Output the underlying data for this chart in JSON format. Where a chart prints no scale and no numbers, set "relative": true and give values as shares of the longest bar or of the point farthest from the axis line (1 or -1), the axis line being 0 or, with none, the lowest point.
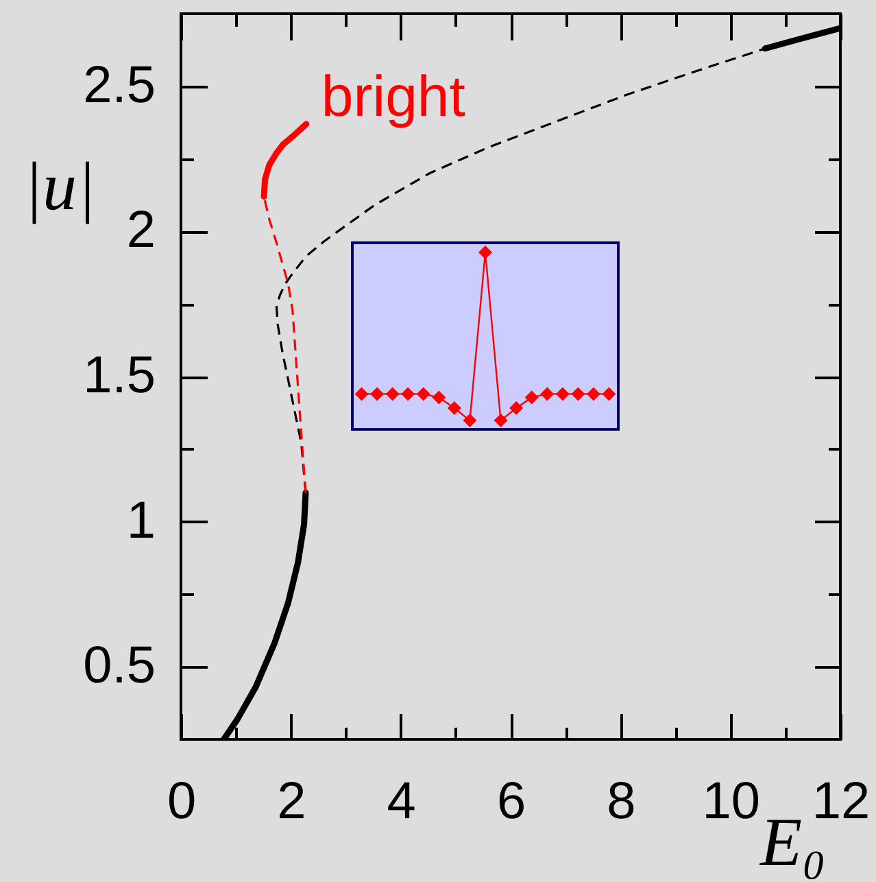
{
  "chart_data": [
    {
      "type": "line",
      "xlabel": "E₀",
      "ylabel": "|u|",
      "xlim": [
        0,
        12
      ],
      "ylim": [
        0.25,
        2.75
      ],
      "xticks": [
        0,
        {
          "value": 1,
          "label": null
        },
        2,
        {
          "value": 3,
          "label": null
        },
        4,
        {
          "value": 5,
          "label": null
        },
        6,
        {
          "value": 7,
          "label": null
        },
        8,
        {
          "value": 9,
          "label": null
        },
        10,
        {
          "value": 11,
          "label": null
        },
        12
      ],
      "yticks": [
        0.5,
        {
          "value": 0.75,
          "label": null
        },
        1,
        {
          "value": 1.25,
          "label": null
        },
        1.5,
        {
          "value": 1.75,
          "label": null
        },
        2,
        {
          "value": 2.25,
          "label": null
        },
        2.5
      ],
      "series": [
        {
          "color": "#000000",
          "line_style": "solid",
          "x": [
            0.78,
            1.03,
            1.36,
            1.7,
            1.95,
            2.13,
            2.24,
            2.27
          ],
          "values": [
            0.25,
            0.32,
            0.43,
            0.58,
            0.72,
            0.86,
            0.99,
            1.1
          ]
        },
        {
          "color": "#000000",
          "line_style": "dashed",
          "x": [
            2.27,
            2.19,
            2.07,
            1.95,
            1.85,
            1.76,
            1.74,
            1.8,
            1.9,
            2.05,
            2.28,
            2.6,
            2.78,
            3.52,
            4.52,
            5.6,
            6.85,
            8.1,
            9.34,
            10.63
          ],
          "values": [
            1.1,
            1.27,
            1.38,
            1.49,
            1.58,
            1.68,
            1.74,
            1.78,
            1.82,
            1.86,
            1.915,
            1.965,
            1.99,
            2.09,
            2.2,
            2.29,
            2.38,
            2.47,
            2.55,
            2.63
          ]
        },
        {
          "color": "#000000",
          "line_style": "solid",
          "x": [
            10.63,
            11.3,
            12
          ],
          "values": [
            2.63,
            2.665,
            2.7
          ]
        },
        {
          "color": "#ff0000",
          "line_style": "dashed",
          "x": [
            2.27,
            2.21,
            2.15,
            2.09,
            2.03,
            1.95,
            1.86,
            1.74,
            1.61,
            1.51
          ],
          "values": [
            1.1,
            1.25,
            1.41,
            1.57,
            1.73,
            1.82,
            1.88,
            1.96,
            2.04,
            2.12
          ]
        },
        {
          "name": "bright",
          "color": "#ff0000",
          "line_style": "solid",
          "x": [
            1.51,
            1.53,
            1.61,
            1.74,
            1.86,
            2.05,
            2.28
          ],
          "values": [
            2.12,
            2.18,
            2.23,
            2.27,
            2.3,
            2.33,
            2.37
          ]
        }
      ]
    },
    {
      "type": "line",
      "relative": true,
      "marker": "diamond",
      "categories": [
        null,
        null,
        null,
        null,
        null,
        null,
        null,
        null,
        null,
        null,
        null,
        null,
        null,
        null,
        null,
        null,
        null
      ],
      "series": [
        {
          "color": "#ff0000",
          "values": [
            0.2,
            0.2,
            0.2,
            0.2,
            0.2,
            0.18,
            0.12,
            0.05,
            1,
            0.05,
            0.12,
            0.18,
            0.2,
            0.2,
            0.2,
            0.2,
            0.2
          ]
        }
      ]
    }
  ]
}
